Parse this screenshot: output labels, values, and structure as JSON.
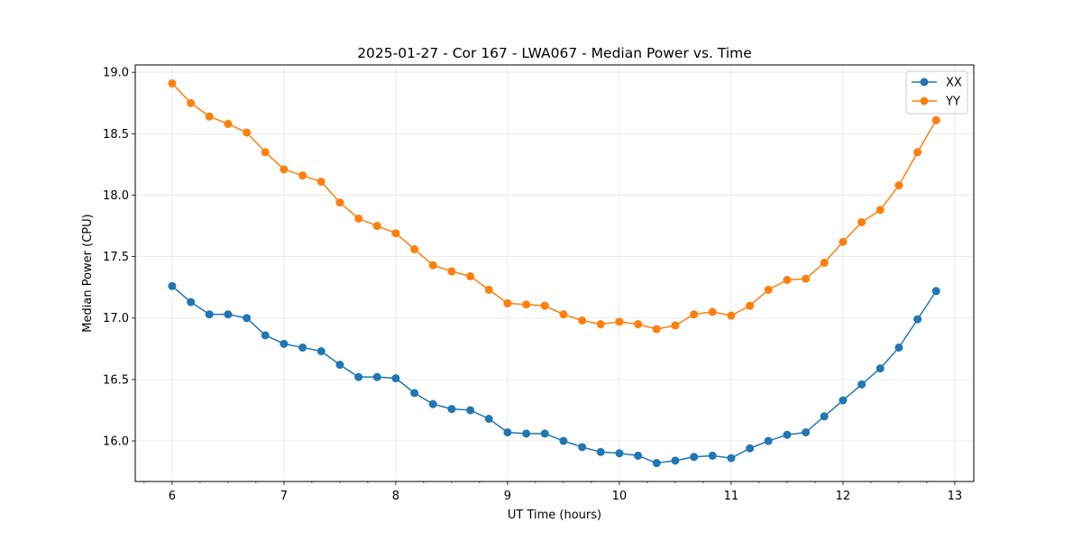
{
  "chart_data": {
    "type": "line",
    "title": "2025-01-27 - Cor 167 - LWA067 - Median Power vs. Time",
    "xlabel": "UT Time (hours)",
    "ylabel": "Median Power (CPU)",
    "xlim": [
      5.67,
      13.17
    ],
    "ylim": [
      15.67,
      19.06
    ],
    "xticks": [
      6,
      7,
      8,
      9,
      10,
      11,
      12,
      13
    ],
    "xtick_labels": [
      "6",
      "7",
      "8",
      "9",
      "10",
      "11",
      "12",
      "13"
    ],
    "yticks": [
      16.0,
      16.5,
      17.0,
      17.5,
      18.0,
      18.5,
      19.0
    ],
    "ytick_labels": [
      "16.0",
      "16.5",
      "17.0",
      "17.5",
      "18.0",
      "18.5",
      "19.0"
    ],
    "grid": true,
    "legend_position": "top-right",
    "x": [
      6.0,
      6.167,
      6.333,
      6.5,
      6.667,
      6.833,
      7.0,
      7.167,
      7.333,
      7.5,
      7.667,
      7.833,
      8.0,
      8.167,
      8.333,
      8.5,
      8.667,
      8.833,
      9.0,
      9.167,
      9.333,
      9.5,
      9.667,
      9.833,
      10.0,
      10.167,
      10.333,
      10.5,
      10.667,
      10.833,
      11.0,
      11.167,
      11.333,
      11.5,
      11.667,
      11.833,
      12.0,
      12.167,
      12.333,
      12.5,
      12.667,
      12.833
    ],
    "series": [
      {
        "name": "XX",
        "color": "#1f77b4",
        "values": [
          17.26,
          17.13,
          17.03,
          17.03,
          17.0,
          16.86,
          16.79,
          16.76,
          16.73,
          16.62,
          16.52,
          16.52,
          16.51,
          16.39,
          16.3,
          16.26,
          16.25,
          16.18,
          16.07,
          16.06,
          16.06,
          16.0,
          15.95,
          15.91,
          15.9,
          15.88,
          15.82,
          15.84,
          15.87,
          15.88,
          15.86,
          15.94,
          16.0,
          16.05,
          16.07,
          16.2,
          16.33,
          16.46,
          16.59,
          16.76,
          16.99,
          17.22
        ]
      },
      {
        "name": "YY",
        "color": "#ff7f0e",
        "values": [
          18.91,
          18.75,
          18.64,
          18.58,
          18.51,
          18.35,
          18.21,
          18.16,
          18.11,
          17.94,
          17.81,
          17.75,
          17.69,
          17.56,
          17.43,
          17.38,
          17.34,
          17.23,
          17.12,
          17.11,
          17.1,
          17.03,
          16.98,
          16.95,
          16.97,
          16.95,
          16.91,
          16.94,
          17.03,
          17.05,
          17.02,
          17.1,
          17.23,
          17.31,
          17.32,
          17.45,
          17.62,
          17.78,
          17.88,
          18.08,
          18.35,
          18.61
        ]
      }
    ]
  }
}
